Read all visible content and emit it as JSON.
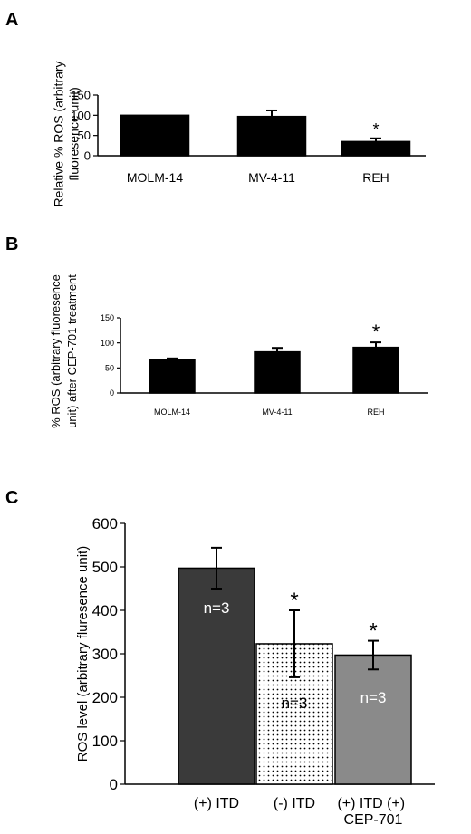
{
  "chart_data": [
    {
      "panel": "A",
      "type": "bar",
      "categories": [
        "MOLM-14",
        "MV-4-11",
        "REH"
      ],
      "values": [
        100,
        97,
        35
      ],
      "errors": [
        0,
        15,
        8
      ],
      "significance": [
        "",
        "",
        "*"
      ],
      "ylabel": "Relative % ROS (arbitrary fluoresence unit)",
      "ylim": [
        0,
        150
      ],
      "yticks": [
        "0",
        "50",
        "100",
        "150"
      ],
      "bar_color": "#000000",
      "grid": false
    },
    {
      "panel": "B",
      "type": "bar",
      "categories": [
        "MOLM-14",
        "MV-4-11",
        "REH"
      ],
      "values": [
        66,
        82,
        91
      ],
      "errors": [
        3,
        8,
        10
      ],
      "significance": [
        "",
        "",
        "*"
      ],
      "ylabel": "% ROS (arbitrary fluoresence unit) after CEP-701 treatment",
      "ylim": [
        0,
        150
      ],
      "yticks": [
        "0",
        "50",
        "100",
        "150"
      ],
      "bar_color": "#000000",
      "grid": false
    },
    {
      "panel": "C",
      "type": "bar",
      "categories": [
        "(+) ITD",
        "(-) ITD",
        "(+) ITD (+) CEP-701"
      ],
      "values": [
        497,
        323,
        297
      ],
      "errors": [
        47,
        77,
        33
      ],
      "significance": [
        "",
        "*",
        "*"
      ],
      "bar_labels": [
        "n=3",
        "n=3",
        "n=3"
      ],
      "ylabel": "ROS level (arbitrary fluresence unit)",
      "ylim": [
        0,
        600
      ],
      "yticks": [
        "0",
        "100",
        "200",
        "300",
        "400",
        "500",
        "600"
      ],
      "bar_colors": [
        "#3a3a3a",
        "#ffffff",
        "#8a8a8a"
      ],
      "bar_patterns": [
        "solid",
        "dotted",
        "solid"
      ],
      "grid": false
    }
  ],
  "panel_letters": [
    "A",
    "B",
    "C"
  ]
}
